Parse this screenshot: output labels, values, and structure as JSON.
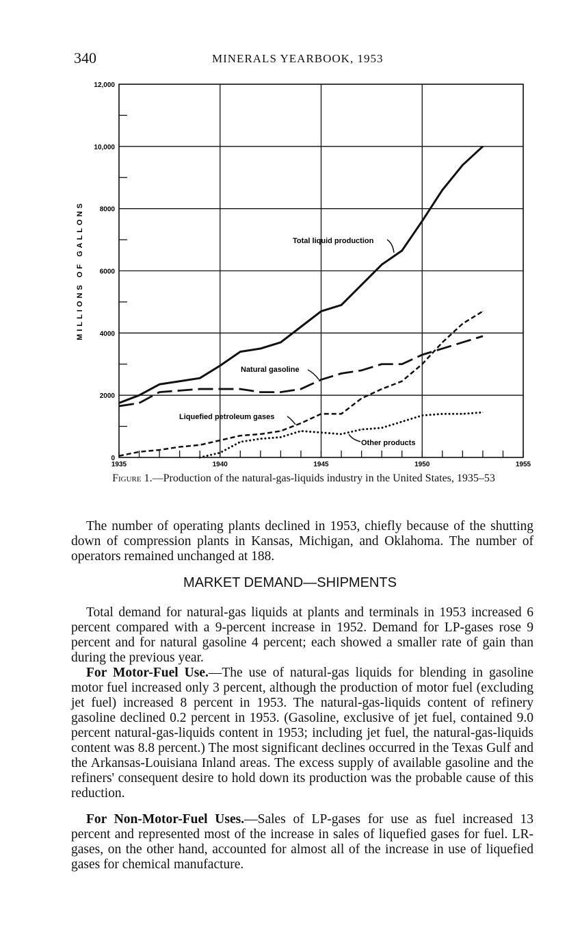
{
  "header": {
    "page_number": "340",
    "running_title": "MINERALS YEARBOOK, 1953"
  },
  "chart_data": {
    "type": "line",
    "title": "",
    "xlabel": "",
    "ylabel": "MILLIONS OF GALLONS",
    "xlim": [
      1935,
      1955
    ],
    "ylim": [
      0,
      12000
    ],
    "grid": true,
    "x_ticks": [
      "1935",
      "1940",
      "1945",
      "1950",
      "1955"
    ],
    "y_ticks": [
      "0",
      "2000",
      "4000",
      "6000",
      "8000",
      "10,000",
      "12,000"
    ],
    "x": [
      1935,
      1936,
      1937,
      1938,
      1939,
      1940,
      1941,
      1942,
      1943,
      1944,
      1945,
      1946,
      1947,
      1948,
      1949,
      1950,
      1951,
      1952,
      1953
    ],
    "series": [
      {
        "name": "Total liquid production",
        "style": "solid",
        "values": [
          1750,
          2000,
          2350,
          2450,
          2550,
          2950,
          3400,
          3500,
          3700,
          4200,
          4700,
          4900,
          5550,
          6200,
          6650,
          7600,
          8600,
          9400,
          10000
        ]
      },
      {
        "name": "Natural gasoline",
        "style": "long-dash",
        "values": [
          1650,
          1750,
          2100,
          2150,
          2200,
          2200,
          2200,
          2100,
          2100,
          2200,
          2500,
          2700,
          2800,
          3000,
          3000,
          3300,
          3500,
          3700,
          3900
        ]
      },
      {
        "name": "Liquefied petroleum gases",
        "style": "short-dash",
        "values": [
          50,
          180,
          240,
          340,
          400,
          550,
          700,
          750,
          850,
          1100,
          1400,
          1400,
          1900,
          2200,
          2450,
          3000,
          3700,
          4300,
          4700
        ]
      },
      {
        "name": "Other products",
        "style": "dotted",
        "values": [
          null,
          null,
          null,
          null,
          0,
          150,
          500,
          600,
          650,
          850,
          800,
          750,
          900,
          950,
          1150,
          1350,
          1400,
          1400,
          1450
        ]
      }
    ]
  },
  "caption": {
    "label": "Figure 1.",
    "text": "—Production of the natural-gas-liquids industry in the United States, 1935–53"
  },
  "paragraph1": "The number of operating plants declined in 1953, chiefly because of the shutting down of compression plants in Kansas, Michigan, and Oklahoma. The number of operators remained unchanged at 188.",
  "section_heading": "MARKET DEMAND—SHIPMENTS",
  "paragraph2": "Total demand for natural-gas liquids at plants and terminals in 1953 increased 6 percent compared with a 9-percent increase in 1952. Demand for LP-gases rose 9 percent and for natural gasoline 4 percent; each showed a smaller rate of gain than during the previous year.",
  "paragraph3": {
    "lead": "For Motor-Fuel Use.",
    "text": "—The use of natural-gas liquids for blending in gasoline motor fuel increased only 3 percent, although the production of motor fuel (excluding jet fuel) increased 8 percent in 1953. The natural-gas-liquids content of refinery gasoline declined 0.2 percent in 1953. (Gasoline, exclusive of jet fuel, contained 9.0 percent natural-gas-liquids content in 1953; including jet fuel, the natural-gas-liquids content was 8.8 percent.) The most significant declines occurred in the Texas Gulf and the Arkansas-Louisiana Inland areas. The excess supply of available gasoline and the refiners' consequent desire to hold down its production was the probable cause of this reduction."
  },
  "paragraph4": {
    "lead": "For Non-Motor-Fuel Uses.",
    "text": "—Sales of LP-gases for use as fuel increased 13 percent and represented most of the increase in sales of liquefied gases for fuel. LR-gases, on the other hand, accounted for almost all of the increase in use of liquefied gases for chemical manufacture."
  }
}
